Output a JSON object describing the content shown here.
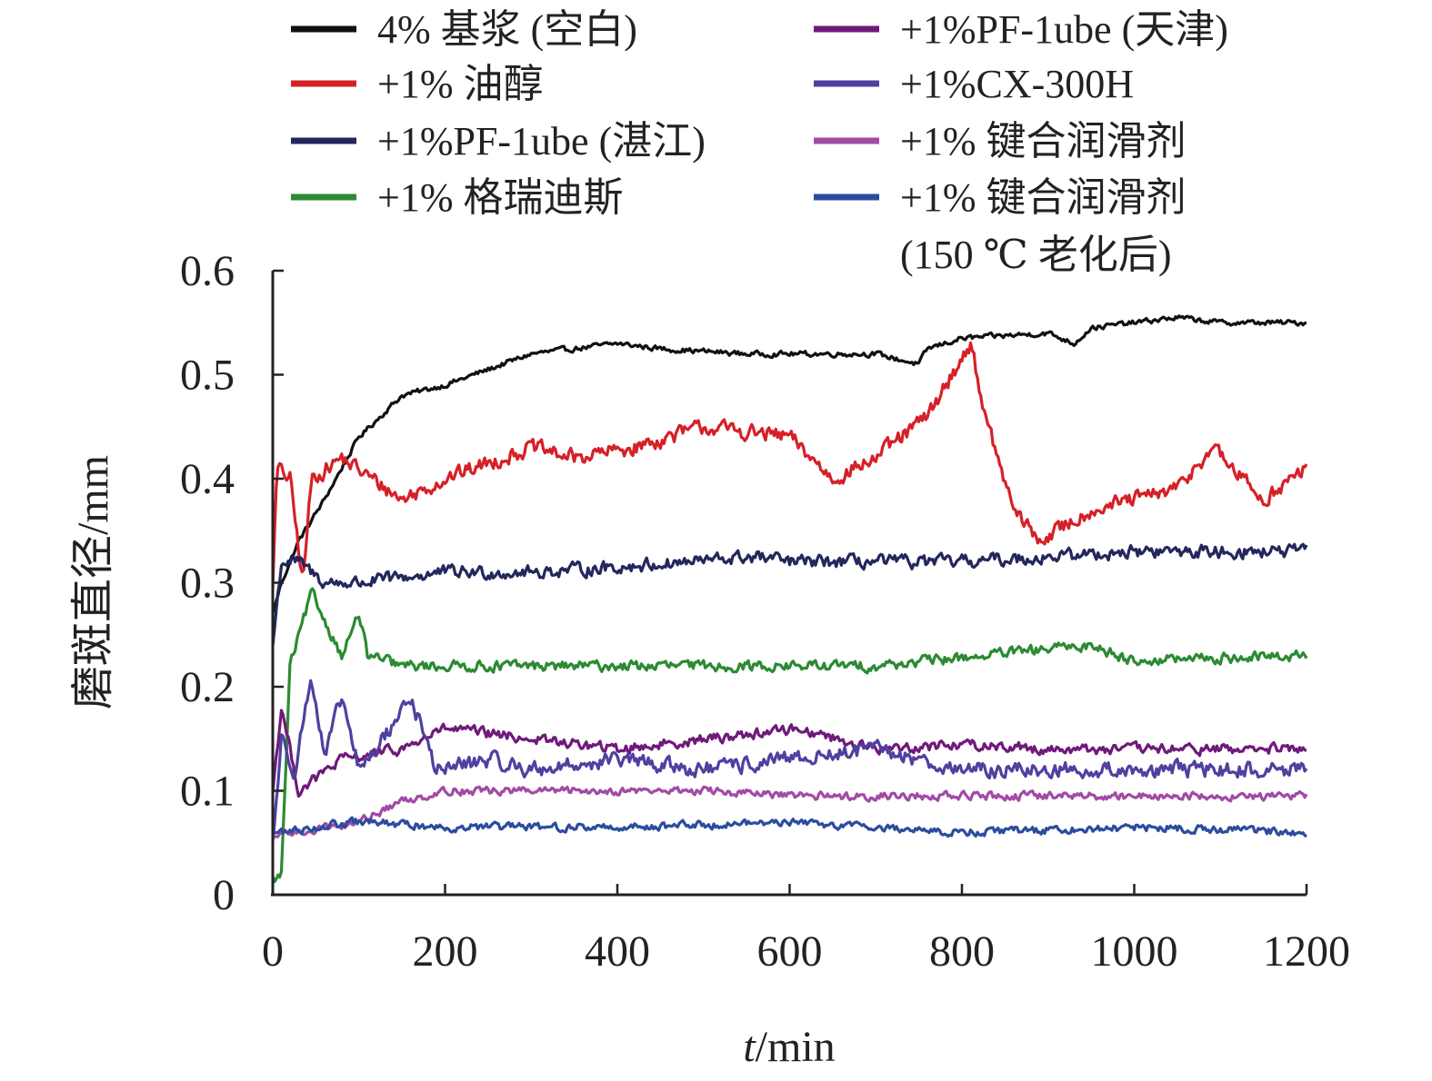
{
  "chart_data": {
    "type": "line",
    "xlabel_italic": "t",
    "xlabel_rest": "/min",
    "ylabel": "磨斑直径/mm",
    "xlim": [
      0,
      1200
    ],
    "ylim": [
      0,
      0.6
    ],
    "xticks": [
      0,
      200,
      400,
      600,
      800,
      1000,
      1200
    ],
    "yticks": [
      0,
      0.1,
      0.2,
      0.3,
      0.4,
      0.5,
      0.6
    ],
    "xtick_labels": [
      "0",
      "200",
      "400",
      "600",
      "800",
      "1000",
      "1200"
    ],
    "ytick_labels": [
      "0",
      "0.1",
      "0.2",
      "0.3",
      "0.4",
      "0.5",
      "0.6"
    ],
    "grid": false,
    "legend_position": "top",
    "series": [
      {
        "name": "4% 基浆 (空白)",
        "color": "#111111",
        "noise": 0.004,
        "x": [
          0,
          10,
          30,
          60,
          100,
          150,
          200,
          300,
          400,
          450,
          550,
          700,
          750,
          760,
          800,
          900,
          930,
          950,
          1000,
          1050,
          1100,
          1200
        ],
        "y": [
          0.27,
          0.3,
          0.34,
          0.38,
          0.44,
          0.48,
          0.49,
          0.52,
          0.53,
          0.525,
          0.52,
          0.52,
          0.51,
          0.525,
          0.535,
          0.54,
          0.53,
          0.545,
          0.55,
          0.555,
          0.55,
          0.55
        ]
      },
      {
        "name": "+1% 油醇",
        "color": "#d62027",
        "noise": 0.012,
        "x": [
          0,
          5,
          20,
          35,
          45,
          80,
          150,
          200,
          300,
          350,
          420,
          500,
          600,
          650,
          700,
          760,
          810,
          830,
          860,
          890,
          950,
          1000,
          1050,
          1090,
          1150,
          1200
        ],
        "y": [
          0.3,
          0.41,
          0.4,
          0.3,
          0.4,
          0.42,
          0.38,
          0.4,
          0.43,
          0.42,
          0.43,
          0.45,
          0.44,
          0.4,
          0.42,
          0.46,
          0.53,
          0.45,
          0.37,
          0.34,
          0.37,
          0.38,
          0.39,
          0.43,
          0.38,
          0.41
        ]
      },
      {
        "name": "+1%PF-1ube (湛江)",
        "color": "#23275c",
        "noise": 0.01,
        "x": [
          0,
          10,
          30,
          60,
          100,
          200,
          300,
          400,
          560,
          600,
          800,
          1000,
          1200
        ],
        "y": [
          0.24,
          0.32,
          0.32,
          0.3,
          0.3,
          0.31,
          0.31,
          0.315,
          0.325,
          0.32,
          0.32,
          0.33,
          0.33
        ]
      },
      {
        "name": "+1% 格瑞迪斯",
        "color": "#2c8a33",
        "noise": 0.008,
        "x": [
          0,
          5,
          10,
          20,
          45,
          80,
          100,
          110,
          150,
          300,
          500,
          700,
          950,
          1000,
          1200
        ],
        "y": [
          0.015,
          0.015,
          0.02,
          0.22,
          0.29,
          0.23,
          0.27,
          0.23,
          0.22,
          0.22,
          0.22,
          0.22,
          0.24,
          0.225,
          0.23
        ]
      },
      {
        "name": "+1%PF-1ube (天津)",
        "color": "#6f1a7a",
        "noise": 0.008,
        "x": [
          0,
          10,
          30,
          80,
          150,
          200,
          300,
          400,
          610,
          700,
          800,
          900,
          1000,
          1200
        ],
        "y": [
          0.1,
          0.18,
          0.1,
          0.13,
          0.14,
          0.16,
          0.15,
          0.14,
          0.16,
          0.14,
          0.145,
          0.14,
          0.14,
          0.14
        ]
      },
      {
        "name": "+1%CX-300H",
        "color": "#5040a0",
        "noise": 0.012,
        "x": [
          0,
          10,
          25,
          45,
          60,
          80,
          100,
          120,
          160,
          190,
          250,
          300,
          400,
          500,
          600,
          700,
          800,
          900,
          1000,
          1200
        ],
        "y": [
          0.05,
          0.15,
          0.12,
          0.21,
          0.13,
          0.19,
          0.12,
          0.14,
          0.19,
          0.12,
          0.13,
          0.12,
          0.13,
          0.12,
          0.13,
          0.14,
          0.12,
          0.12,
          0.12,
          0.12
        ]
      },
      {
        "name": "+1% 键合润滑剂",
        "color": "#a24aa6",
        "noise": 0.006,
        "x": [
          0,
          10,
          30,
          60,
          100,
          150,
          200,
          300,
          400,
          500,
          600,
          800,
          1000,
          1200
        ],
        "y": [
          0.05,
          0.06,
          0.06,
          0.065,
          0.07,
          0.09,
          0.1,
          0.1,
          0.1,
          0.1,
          0.095,
          0.095,
          0.095,
          0.095
        ]
      },
      {
        "name": "+1% 键合润滑剂",
        "name_line2": "(150 ℃ 老化后)",
        "color": "#2c4c9e",
        "noise": 0.006,
        "x": [
          0,
          10,
          50,
          100,
          200,
          400,
          600,
          800,
          1000,
          1200
        ],
        "y": [
          0.06,
          0.06,
          0.065,
          0.07,
          0.065,
          0.065,
          0.07,
          0.06,
          0.065,
          0.06
        ]
      }
    ]
  }
}
